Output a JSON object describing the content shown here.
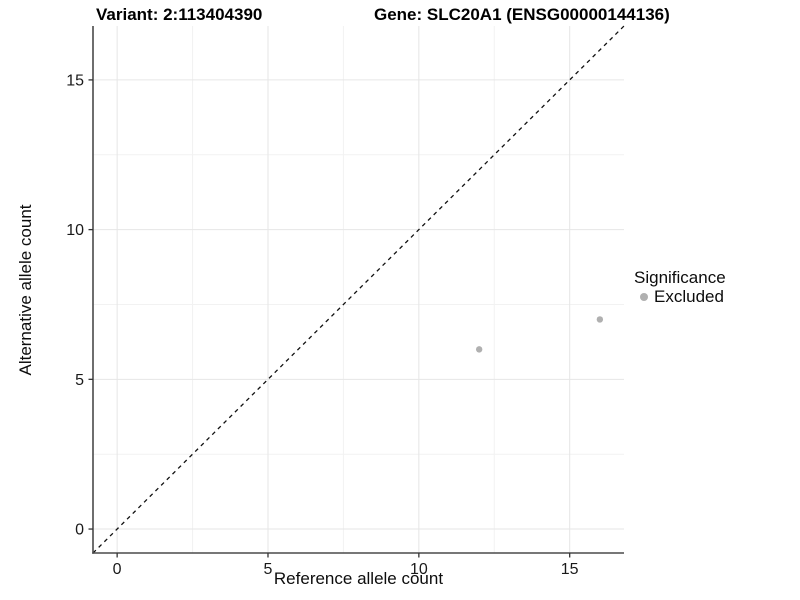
{
  "chart_data": {
    "type": "scatter",
    "title_left": "Variant: 2:113404390",
    "title_right": "Gene: SLC20A1 (ENSG00000144136)",
    "xlabel": "Reference allele count",
    "ylabel": "Alternative allele count",
    "xlim": [
      -0.8,
      16.8
    ],
    "ylim": [
      -0.8,
      16.8
    ],
    "x_ticks": [
      0,
      5,
      10,
      15
    ],
    "y_ticks": [
      0,
      5,
      10,
      15
    ],
    "x_minor_ticks": [
      2.5,
      7.5,
      12.5
    ],
    "y_minor_ticks": [
      2.5,
      7.5,
      12.5
    ],
    "grid": "on",
    "reference_line": {
      "kind": "identity y=x",
      "style": "dashed",
      "color": "#111111"
    },
    "series": [
      {
        "name": "Excluded",
        "color": "#b0b0b0",
        "marker": "circle",
        "points": [
          [
            12,
            6
          ],
          [
            16,
            7
          ]
        ]
      }
    ],
    "legend": {
      "title": "Significance",
      "position": "right",
      "items": [
        {
          "label": "Excluded",
          "color": "#b0b0b0"
        }
      ]
    }
  }
}
